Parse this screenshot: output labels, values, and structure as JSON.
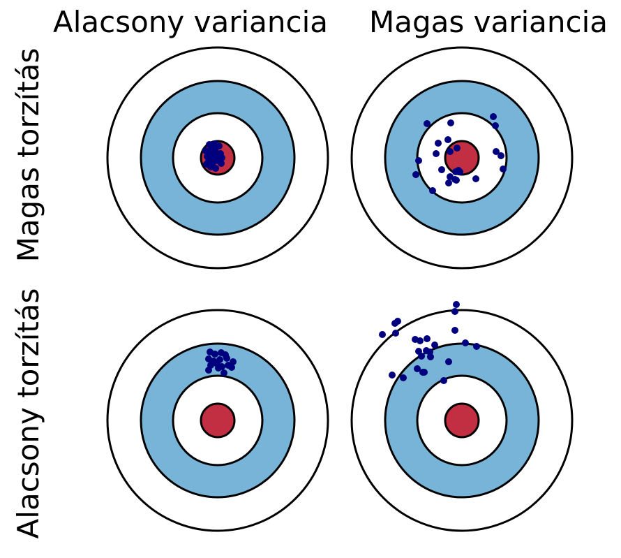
{
  "column_titles": [
    "Alacsony variancia",
    "Magas variancia"
  ],
  "row_titles": [
    "Magas torzítás",
    "Alacsony torzítás"
  ],
  "colors": {
    "ring_blue": "#78b4d8",
    "bullseye_red": "#c22f42",
    "dot": "#00007f",
    "outline": "#000000"
  },
  "panels": [
    {
      "name": "panel-high-bias-low-variance",
      "row": 0,
      "col": 0,
      "shots": [
        [
          -12,
          -19
        ],
        [
          -9,
          -16
        ],
        [
          -4,
          -20
        ],
        [
          2,
          -17
        ],
        [
          -17,
          -10
        ],
        [
          -11,
          -8
        ],
        [
          -3,
          -9
        ],
        [
          4,
          -6
        ],
        [
          -15,
          -2
        ],
        [
          -8,
          -1
        ],
        [
          1,
          -3
        ],
        [
          6,
          0
        ],
        [
          -13,
          5
        ],
        [
          -7,
          7
        ],
        [
          0,
          4
        ],
        [
          5,
          8
        ],
        [
          -10,
          13
        ],
        [
          -3,
          15
        ],
        [
          -16,
          9
        ],
        [
          -6,
          -13
        ]
      ]
    },
    {
      "name": "panel-high-bias-high-variance",
      "row": 0,
      "col": 1,
      "shots": [
        [
          -50,
          -49
        ],
        [
          -16,
          -50
        ],
        [
          45,
          -59
        ],
        [
          48,
          -46
        ],
        [
          -20,
          -26
        ],
        [
          -34,
          -21
        ],
        [
          -17,
          -9
        ],
        [
          -37,
          -6
        ],
        [
          -7,
          -14
        ],
        [
          49,
          -9
        ],
        [
          56,
          -3
        ],
        [
          -62,
          4
        ],
        [
          -29,
          17
        ],
        [
          -17,
          27
        ],
        [
          -9,
          20
        ],
        [
          -5,
          18
        ],
        [
          -10,
          31
        ],
        [
          -19,
          36
        ],
        [
          -42,
          47
        ],
        [
          -66,
          24
        ],
        [
          -8,
          32
        ],
        [
          -3,
          20
        ],
        [
          20,
          30
        ],
        [
          59,
          16
        ]
      ]
    },
    {
      "name": "panel-low-bias-low-variance",
      "row": 1,
      "col": 0,
      "shots": [
        [
          -11,
          -98
        ],
        [
          -4,
          -95
        ],
        [
          5,
          -97
        ],
        [
          11,
          -94
        ],
        [
          -13,
          -88
        ],
        [
          -6,
          -85
        ],
        [
          3,
          -87
        ],
        [
          13,
          -89
        ],
        [
          -10,
          -79
        ],
        [
          -1,
          -81
        ],
        [
          6,
          -77
        ],
        [
          15,
          -79
        ],
        [
          22,
          -84
        ],
        [
          20,
          -76
        ],
        [
          9,
          -68
        ],
        [
          -13,
          -72
        ],
        [
          1,
          -75
        ]
      ]
    },
    {
      "name": "panel-low-bias-high-variance",
      "row": 1,
      "col": 1,
      "shots": [
        [
          -8,
          -166
        ],
        [
          -10,
          -156
        ],
        [
          -92,
          -142
        ],
        [
          -96,
          -139
        ],
        [
          -95,
          -125
        ],
        [
          -114,
          -123
        ],
        [
          -10,
          -129
        ],
        [
          -67,
          -116
        ],
        [
          -60,
          -114
        ],
        [
          -50,
          -117
        ],
        [
          -39,
          -108
        ],
        [
          5,
          -111
        ],
        [
          21,
          -106
        ],
        [
          -62,
          -99
        ],
        [
          -51,
          -100
        ],
        [
          -46,
          -98
        ],
        [
          -58,
          -92
        ],
        [
          -45,
          -91
        ],
        [
          -19,
          -84
        ],
        [
          -64,
          -74
        ],
        [
          -56,
          -69
        ],
        [
          -100,
          -65
        ],
        [
          -84,
          -61
        ],
        [
          -54,
          -69
        ],
        [
          -26,
          -57
        ]
      ]
    }
  ]
}
